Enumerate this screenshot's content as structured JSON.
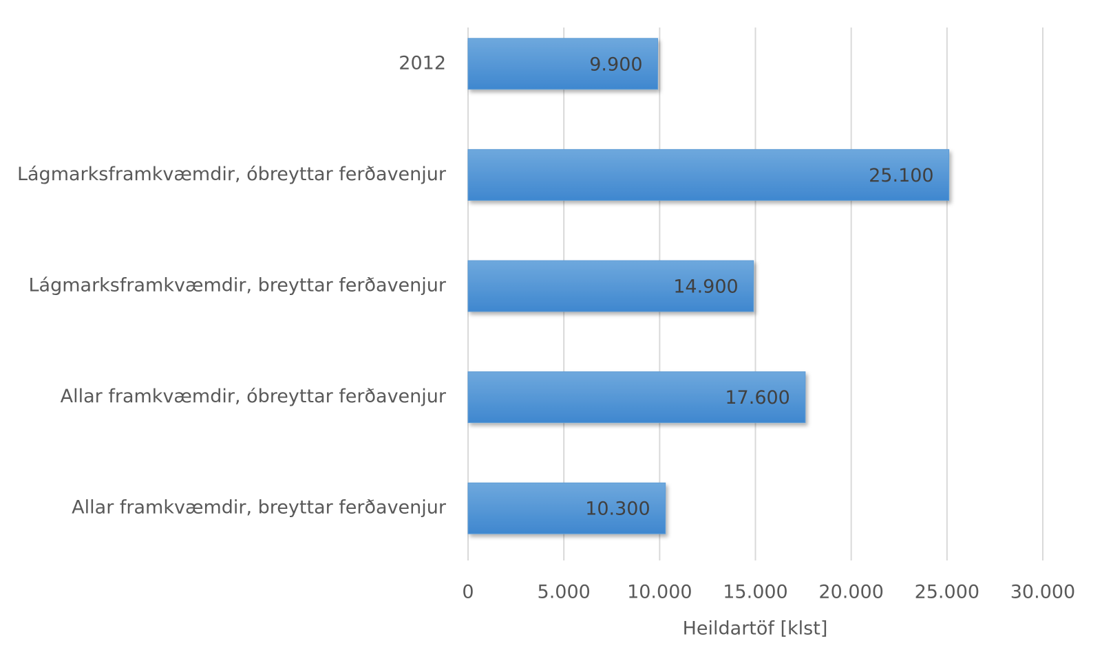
{
  "chart_data": {
    "type": "bar",
    "orientation": "horizontal",
    "categories": [
      "2012",
      "Lágmarksframkvæmdir, óbreyttar ferðavenjur",
      "Lágmarksframkvæmdir, breyttar ferðavenjur",
      "Allar framkvæmdir, óbreyttar ferðavenjur",
      "Allar framkvæmdir, breyttar ferðavenjur"
    ],
    "values": [
      9900,
      25100,
      14900,
      17600,
      10300
    ],
    "value_labels": [
      "9.900",
      "25.100",
      "14.900",
      "17.600",
      "10.300"
    ],
    "color": "#5b9bd5",
    "xlabel": "Heildartöf [klst]",
    "xlim": [
      0,
      30000
    ],
    "xticks": [
      0,
      {
        "value": 5000,
        "label": "5.000"
      },
      {
        "value": 10000,
        "label": "10.000"
      },
      {
        "value": 15000,
        "label": "15.000"
      },
      {
        "value": 20000,
        "label": "20.000"
      },
      {
        "value": 25000,
        "label": "25.000"
      },
      {
        "value": 30000,
        "label": "30.000"
      }
    ],
    "grid": true
  }
}
